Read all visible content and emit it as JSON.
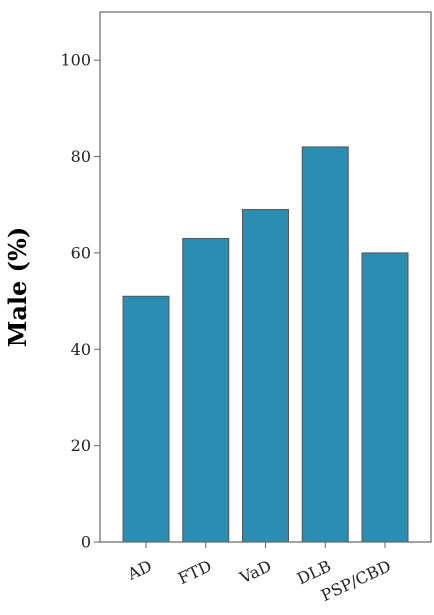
{
  "chart_data": {
    "type": "bar",
    "categories": [
      "AD",
      "FTD",
      "VaD",
      "DLB",
      "PSP/CBD"
    ],
    "values": [
      51,
      63,
      69,
      82,
      60
    ],
    "title": "",
    "xlabel": "",
    "ylabel": "Male (%)",
    "ylim": [
      0,
      110
    ],
    "yticks": [
      0,
      20,
      40,
      60,
      80,
      100
    ],
    "grid": false,
    "bar_color": "#2b8db2",
    "bar_edge_color": "#555555",
    "frame_color": "#666666"
  }
}
